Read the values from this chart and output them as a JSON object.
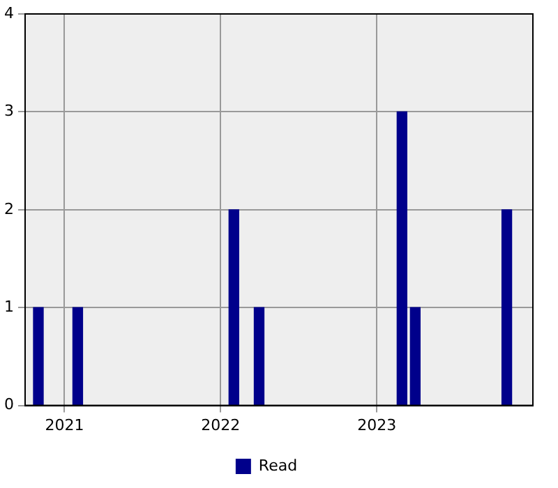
{
  "chart_data": {
    "type": "bar",
    "x": [
      "2020-11",
      "2021-02",
      "2022-02",
      "2022-04",
      "2023-03",
      "2023-04",
      "2023-11"
    ],
    "series": [
      {
        "name": "Read",
        "color": "#00008b",
        "values": [
          1,
          1,
          2,
          1,
          3,
          1,
          2
        ]
      }
    ],
    "xlim": [
      "2020-10",
      "2024-01"
    ],
    "xticks": [
      "2021",
      "2022",
      "2023"
    ],
    "ylim": [
      0,
      4
    ],
    "yticks": [
      0,
      1,
      2,
      3,
      4
    ],
    "grid": true,
    "legend": "bottom"
  }
}
